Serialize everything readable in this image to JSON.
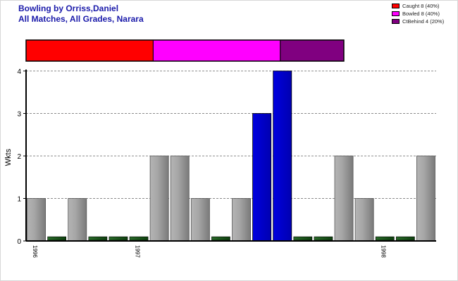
{
  "header": {
    "title": "Bowling by Orriss,Daniel",
    "subtitle": "All Matches, All Grades, Narara"
  },
  "legend": [
    {
      "label": "Caught 8 (40%)",
      "color": "#ff0000"
    },
    {
      "label": "Bowled 8 (40%)",
      "color": "#ff00ff"
    },
    {
      "label": "CtBehind 4 (20%)",
      "color": "#800080"
    }
  ],
  "chart_data": [
    {
      "type": "bar",
      "stacked_percent": true,
      "segments": [
        {
          "name": "Caught",
          "value": 8,
          "percent": 40,
          "color": "#ff0000"
        },
        {
          "name": "Bowled",
          "value": 8,
          "percent": 40,
          "color": "#ff00ff"
        },
        {
          "name": "CtBehind",
          "value": 4,
          "percent": 20,
          "color": "#800080"
        }
      ]
    },
    {
      "type": "bar",
      "ylabel": "Wkts",
      "ylim": [
        0,
        4
      ],
      "yticks": [
        0,
        1,
        2,
        3,
        4
      ],
      "grid": true,
      "values": [
        1,
        0,
        1,
        0,
        0,
        0,
        2,
        2,
        1,
        0,
        1,
        3,
        4,
        0,
        0,
        2,
        1,
        0,
        0,
        2
      ],
      "highlight": [
        false,
        false,
        false,
        false,
        false,
        false,
        false,
        false,
        false,
        false,
        false,
        true,
        true,
        false,
        false,
        false,
        false,
        false,
        false,
        false
      ],
      "x_labels": [
        {
          "index": 0,
          "label": "1996"
        },
        {
          "index": 5,
          "label": "1997"
        },
        {
          "index": 17,
          "label": "1998"
        }
      ],
      "colors": {
        "normal": "#a0a0a0",
        "highlight": "#0000dd",
        "zero": "#1a5c1a"
      }
    }
  ]
}
